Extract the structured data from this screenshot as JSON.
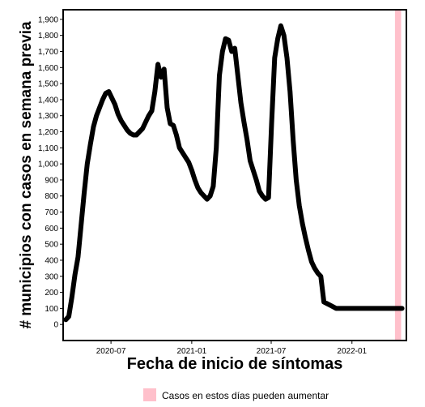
{
  "chart_data": {
    "type": "line",
    "xlabel": "Fecha de inicio de síntomas",
    "ylabel": "# municipios con casos en semana previa",
    "xlim": [
      "2020-03-14",
      "2022-05-05"
    ],
    "ylim": [
      -100,
      1960
    ],
    "x_ticks": [
      {
        "date": "2020-07-01",
        "label": "2020-07"
      },
      {
        "date": "2021-01-01",
        "label": "2021-01"
      },
      {
        "date": "2021-07-01",
        "label": "2021-07"
      },
      {
        "date": "2022-01-01",
        "label": "2022-01"
      }
    ],
    "y_ticks": [
      {
        "value": 0,
        "label": "0"
      },
      {
        "value": 100,
        "label": "100"
      },
      {
        "value": 200,
        "label": "200"
      },
      {
        "value": 300,
        "label": "300"
      },
      {
        "value": 400,
        "label": "400"
      },
      {
        "value": 500,
        "label": "500"
      },
      {
        "value": 600,
        "label": "600"
      },
      {
        "value": 700,
        "label": "700"
      },
      {
        "value": 800,
        "label": "800"
      },
      {
        "value": 900,
        "label": "900"
      },
      {
        "value": 1000,
        "label": "1,000"
      },
      {
        "value": 1100,
        "label": "1,100"
      },
      {
        "value": 1200,
        "label": "1,200"
      },
      {
        "value": 1300,
        "label": "1,300"
      },
      {
        "value": 1400,
        "label": "1,400"
      },
      {
        "value": 1500,
        "label": "1,500"
      },
      {
        "value": 1600,
        "label": "1,600"
      },
      {
        "value": 1700,
        "label": "1,700"
      },
      {
        "value": 1800,
        "label": "1,800"
      },
      {
        "value": 1900,
        "label": "1,900"
      }
    ],
    "grid": false,
    "line_color": "#000000",
    "highlight": {
      "start": "2022-04-09",
      "end": "2022-04-23",
      "color": "#ffc0cb",
      "label": "Casos en estos días pueden aumentar"
    },
    "legend_position": "bottom",
    "series": [
      {
        "x": [
          "2020-03-20",
          "2020-03-27",
          "2020-04-03",
          "2020-04-10",
          "2020-04-17",
          "2020-04-24",
          "2020-05-01",
          "2020-05-08",
          "2020-05-15",
          "2020-05-22",
          "2020-05-29",
          "2020-06-05",
          "2020-06-12",
          "2020-06-19",
          "2020-06-26",
          "2020-07-03",
          "2020-07-10",
          "2020-07-17",
          "2020-07-24",
          "2020-07-31",
          "2020-08-07",
          "2020-08-14",
          "2020-08-21",
          "2020-08-28",
          "2020-09-04",
          "2020-09-11",
          "2020-09-18",
          "2020-09-25",
          "2020-10-02",
          "2020-10-09",
          "2020-10-16",
          "2020-10-23",
          "2020-10-30",
          "2020-11-06",
          "2020-11-13",
          "2020-11-20",
          "2020-11-27",
          "2020-12-04",
          "2020-12-11",
          "2020-12-18",
          "2020-12-25",
          "2021-01-01",
          "2021-01-08",
          "2021-01-15",
          "2021-01-22",
          "2021-01-29",
          "2021-02-05",
          "2021-02-12",
          "2021-02-19",
          "2021-02-26",
          "2021-03-05",
          "2021-03-12",
          "2021-03-19",
          "2021-03-26",
          "2021-04-02",
          "2021-04-09",
          "2021-04-16",
          "2021-04-23",
          "2021-04-30",
          "2021-05-07",
          "2021-05-14",
          "2021-05-21",
          "2021-05-28",
          "2021-06-04",
          "2021-06-11",
          "2021-06-18",
          "2021-06-25",
          "2021-07-02",
          "2021-07-09",
          "2021-07-16",
          "2021-07-23",
          "2021-07-30",
          "2021-08-06",
          "2021-08-13",
          "2021-08-20",
          "2021-08-27",
          "2021-09-03",
          "2021-09-10",
          "2021-09-17",
          "2021-09-24",
          "2021-10-01",
          "2021-10-08",
          "2021-10-15",
          "2021-10-22",
          "2021-10-29",
          "2021-11-05",
          "2021-11-12",
          "2021-11-19",
          "2021-11-26",
          "2021-12-03",
          "2021-12-10",
          "2021-12-17",
          "2021-12-24",
          "2021-12-31",
          "2022-01-07",
          "2022-01-14",
          "2022-01-21",
          "2022-01-28",
          "2022-02-04",
          "2022-02-11",
          "2022-02-18",
          "2022-02-25",
          "2022-03-04",
          "2022-03-11",
          "2022-03-18",
          "2022-03-25",
          "2022-04-01",
          "2022-04-08",
          "2022-04-15",
          "2022-04-22",
          "2022-04-25"
        ],
        "values": [
          30,
          50,
          170,
          310,
          420,
          620,
          820,
          1000,
          1120,
          1230,
          1300,
          1350,
          1400,
          1440,
          1450,
          1410,
          1370,
          1310,
          1270,
          1240,
          1210,
          1190,
          1180,
          1180,
          1200,
          1220,
          1260,
          1300,
          1330,
          1450,
          1620,
          1540,
          1590,
          1350,
          1250,
          1240,
          1180,
          1100,
          1070,
          1040,
          1010,
          960,
          900,
          850,
          820,
          800,
          780,
          800,
          860,
          1100,
          1550,
          1700,
          1780,
          1770,
          1700,
          1720,
          1550,
          1380,
          1260,
          1150,
          1020,
          960,
          900,
          830,
          800,
          780,
          790,
          1250,
          1660,
          1780,
          1860,
          1800,
          1660,
          1450,
          1150,
          900,
          740,
          630,
          540,
          460,
          390,
          350,
          320,
          300,
          140,
          130,
          120,
          110,
          100,
          100,
          100,
          100,
          100,
          100,
          100,
          100,
          100,
          100,
          100,
          100,
          100,
          100,
          100,
          100,
          100,
          100,
          100,
          100,
          100,
          100,
          100
        ]
      }
    ]
  }
}
